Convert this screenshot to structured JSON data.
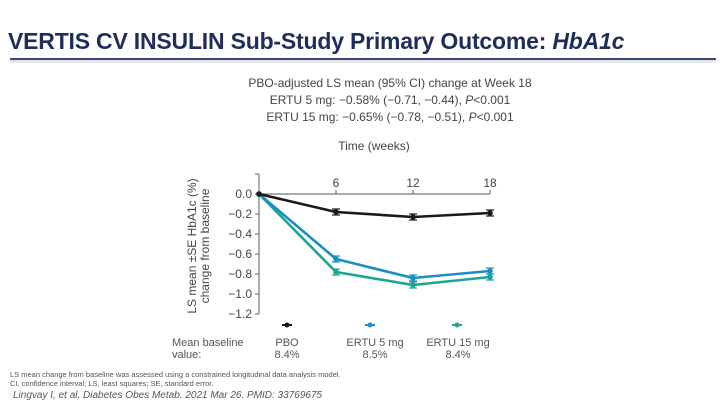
{
  "slide": {
    "title_main": "VERTIS CV INSULIN Sub-Study Primary Outcome: ",
    "title_italic": "HbA1c",
    "summary": {
      "line1": "PBO-adjusted LS mean (95% CI) change at Week 18",
      "line2_prefix": "ERTU 5 mg: −0.58% (−0.71, −0.44), ",
      "line2_p": "P",
      "line2_suffix": "<0.001",
      "line3_prefix": "ERTU 15 mg: −0.65% (−0.78, −0.51), ",
      "line3_p": "P",
      "line3_suffix": "<0.001"
    },
    "baseline": {
      "label_line1": "Mean baseline",
      "label_line2": "value:",
      "groups": [
        {
          "name": "PBO",
          "value": "8.4%"
        },
        {
          "name": "ERTU 5 mg",
          "value": "8.5%"
        },
        {
          "name": "ERTU 15 mg",
          "value": "8.4%"
        }
      ]
    },
    "footnote1": "LS mean change from baseline was assessed using a constrained longitudinal data analysis model.",
    "footnote2": "CI, confidence interval; LS, least squares; SE, standard error.",
    "citation": "Lingvay I, et al. Diabetes Obes Metab. 2021 Mar 26. PMID: 33769675"
  },
  "chart_data": {
    "type": "line",
    "title": "",
    "xlabel": "Time (weeks)",
    "ylabel_line1": "LS mean ±SE HbA1c (%)",
    "ylabel_line2": "change from baseline",
    "x": [
      0,
      6,
      12,
      18
    ],
    "x_tick_labels": [
      "6",
      "12",
      "18"
    ],
    "x_ticks": [
      6,
      12,
      18
    ],
    "xlim": [
      0,
      18
    ],
    "ylim": [
      -1.2,
      0.0
    ],
    "y_ticks": [
      0.0,
      -0.2,
      -0.4,
      -0.6,
      -0.8,
      -1.0,
      -1.2
    ],
    "y_tick_labels": [
      "0.0",
      "−0.2",
      "−0.4",
      "−0.6",
      "−0.8",
      "−1.0",
      "−1.2"
    ],
    "grid": false,
    "legend_position": "bottom",
    "series": [
      {
        "name": "PBO",
        "color": "#1a1a1a",
        "values": [
          0.0,
          -0.18,
          -0.23,
          -0.19
        ],
        "se": [
          0,
          0.03,
          0.03,
          0.03
        ]
      },
      {
        "name": "ERTU 5 mg",
        "color": "#1b8ec4",
        "values": [
          0.0,
          -0.65,
          -0.84,
          -0.77
        ],
        "se": [
          0,
          0.03,
          0.03,
          0.03
        ]
      },
      {
        "name": "ERTU 15 mg",
        "color": "#1aa596",
        "values": [
          0.0,
          -0.78,
          -0.91,
          -0.83
        ],
        "se": [
          0,
          0.03,
          0.03,
          0.03
        ]
      }
    ]
  }
}
